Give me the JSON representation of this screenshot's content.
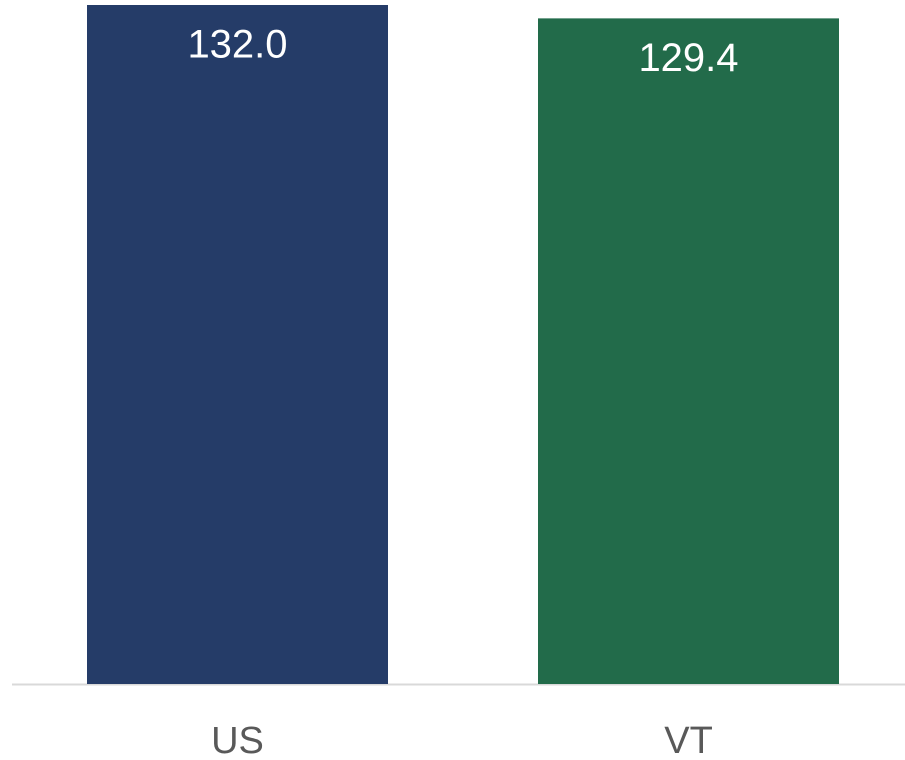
{
  "chart_data": {
    "type": "bar",
    "categories": [
      "US",
      "VT"
    ],
    "values": [
      132.0,
      129.4
    ],
    "value_labels": [
      "132.0",
      "129.4"
    ],
    "colors": [
      "#253c68",
      "#226b4a"
    ],
    "ylim": [
      0,
      132
    ]
  }
}
